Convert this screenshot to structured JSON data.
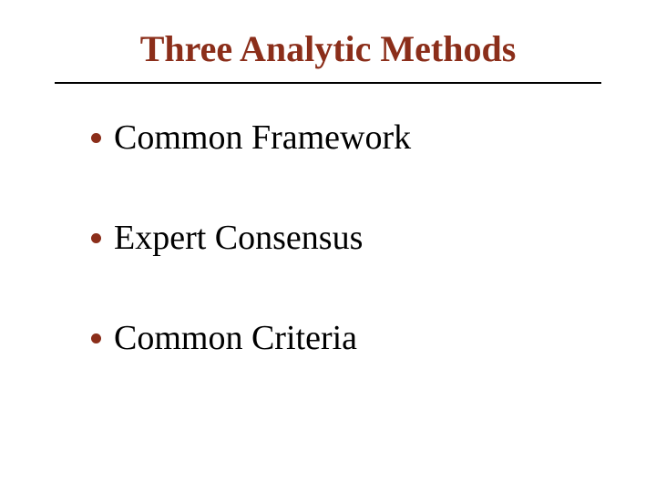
{
  "slide": {
    "title": "Three Analytic Methods",
    "title_color": "#8b2e1a",
    "title_fontsize": 40,
    "divider_color": "#000000",
    "background_color": "#ffffff",
    "bullets": [
      {
        "text": "Common Framework"
      },
      {
        "text": "Expert Consensus"
      },
      {
        "text": "Common Criteria"
      }
    ],
    "bullet_color": "#8b2e1a",
    "bullet_text_color": "#000000",
    "bullet_fontsize": 38
  }
}
